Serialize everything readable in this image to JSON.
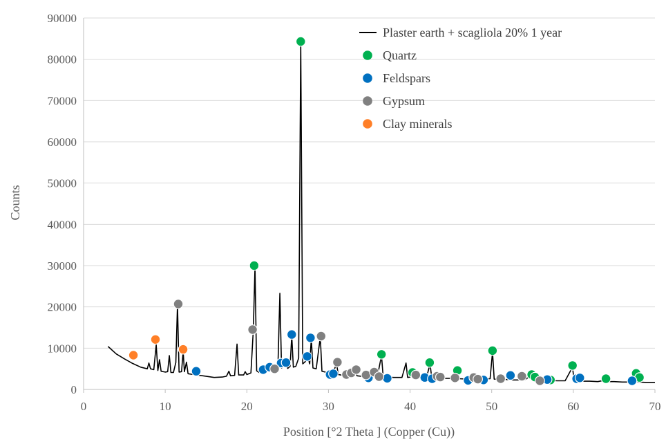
{
  "chart_data": {
    "type": "line",
    "title": "",
    "xlabel": "Position [°2 Theta ] (Copper (Cu))",
    "ylabel": "Counts",
    "xlim": [
      0,
      70
    ],
    "ylim": [
      0,
      90000
    ],
    "x_ticks": [
      0,
      10,
      20,
      30,
      40,
      50,
      60,
      70
    ],
    "y_ticks": [
      0,
      10000,
      20000,
      30000,
      40000,
      50000,
      60000,
      70000,
      80000,
      90000
    ],
    "grid": "horizontal",
    "legend_position": "top-right",
    "series": [
      {
        "name": "Plaster earth + scagliola 20% 1 year",
        "kind": "line",
        "color": "#000000",
        "points": [
          [
            3.0,
            10400
          ],
          [
            4.0,
            8600
          ],
          [
            5.0,
            7400
          ],
          [
            6.0,
            6300
          ],
          [
            7.0,
            5400
          ],
          [
            7.8,
            5000
          ],
          [
            8.0,
            6400
          ],
          [
            8.2,
            5000
          ],
          [
            8.6,
            4800
          ],
          [
            8.9,
            10800
          ],
          [
            9.1,
            4600
          ],
          [
            9.3,
            7200
          ],
          [
            9.5,
            4400
          ],
          [
            10.0,
            4200
          ],
          [
            10.3,
            4300
          ],
          [
            10.5,
            8200
          ],
          [
            10.7,
            4100
          ],
          [
            11.0,
            4100
          ],
          [
            11.3,
            6500
          ],
          [
            11.5,
            20500
          ],
          [
            11.7,
            4200
          ],
          [
            12.0,
            4300
          ],
          [
            12.2,
            9300
          ],
          [
            12.35,
            4300
          ],
          [
            12.6,
            6600
          ],
          [
            12.8,
            3800
          ],
          [
            13.5,
            3600
          ],
          [
            15.0,
            3200
          ],
          [
            16.0,
            2900
          ],
          [
            17.0,
            3000
          ],
          [
            17.5,
            3200
          ],
          [
            17.8,
            4400
          ],
          [
            18.0,
            3300
          ],
          [
            18.5,
            3400
          ],
          [
            18.8,
            11000
          ],
          [
            19.0,
            3500
          ],
          [
            19.6,
            3500
          ],
          [
            19.8,
            4300
          ],
          [
            20.0,
            3600
          ],
          [
            20.5,
            4000
          ],
          [
            20.8,
            14500
          ],
          [
            21.0,
            29800
          ],
          [
            21.2,
            4500
          ],
          [
            21.5,
            4100
          ],
          [
            22.0,
            4300
          ],
          [
            22.4,
            5200
          ],
          [
            22.6,
            4400
          ],
          [
            23.0,
            5000
          ],
          [
            23.3,
            4800
          ],
          [
            23.5,
            5600
          ],
          [
            23.8,
            4900
          ],
          [
            24.05,
            23300
          ],
          [
            24.25,
            5200
          ],
          [
            24.5,
            5600
          ],
          [
            24.8,
            6600
          ],
          [
            25.0,
            5100
          ],
          [
            25.3,
            5600
          ],
          [
            25.5,
            13000
          ],
          [
            25.7,
            5400
          ],
          [
            26.0,
            5600
          ],
          [
            26.35,
            7600
          ],
          [
            26.6,
            84000
          ],
          [
            26.85,
            6200
          ],
          [
            27.2,
            6800
          ],
          [
            27.5,
            7500
          ],
          [
            27.7,
            6200
          ],
          [
            27.9,
            12300
          ],
          [
            28.1,
            5200
          ],
          [
            28.5,
            5000
          ],
          [
            29.0,
            12700
          ],
          [
            29.2,
            4400
          ],
          [
            29.6,
            4200
          ],
          [
            30.0,
            4000
          ],
          [
            30.5,
            3800
          ],
          [
            31.0,
            6200
          ],
          [
            31.2,
            3600
          ],
          [
            31.5,
            3500
          ],
          [
            32.0,
            3400
          ],
          [
            32.5,
            3300
          ],
          [
            33.0,
            3500
          ],
          [
            33.3,
            4400
          ],
          [
            33.5,
            3300
          ],
          [
            34.0,
            3200
          ],
          [
            34.5,
            3100
          ],
          [
            35.0,
            3200
          ],
          [
            35.5,
            3300
          ],
          [
            36.0,
            3200
          ],
          [
            36.5,
            8200
          ],
          [
            36.7,
            3100
          ],
          [
            37.0,
            3000
          ],
          [
            38.0,
            2900
          ],
          [
            39.0,
            2900
          ],
          [
            39.5,
            6400
          ],
          [
            39.7,
            2900
          ],
          [
            40.0,
            3000
          ],
          [
            40.5,
            3700
          ],
          [
            40.8,
            2900
          ],
          [
            41.5,
            2800
          ],
          [
            42.0,
            2800
          ],
          [
            42.45,
            6200
          ],
          [
            42.65,
            2800
          ],
          [
            43.0,
            2700
          ],
          [
            44.0,
            2700
          ],
          [
            45.0,
            2700
          ],
          [
            45.8,
            4300
          ],
          [
            46.0,
            2600
          ],
          [
            47.0,
            2500
          ],
          [
            48.0,
            2500
          ],
          [
            49.0,
            2500
          ],
          [
            49.8,
            2600
          ],
          [
            50.1,
            9100
          ],
          [
            50.3,
            2500
          ],
          [
            51.0,
            2400
          ],
          [
            52.0,
            2400
          ],
          [
            52.3,
            3100
          ],
          [
            52.5,
            2300
          ],
          [
            53.0,
            2300
          ],
          [
            54.0,
            2300
          ],
          [
            54.9,
            3400
          ],
          [
            55.1,
            2300
          ],
          [
            56.0,
            2200
          ],
          [
            57.0,
            2200
          ],
          [
            58.0,
            2100
          ],
          [
            59.0,
            2100
          ],
          [
            59.9,
            5400
          ],
          [
            60.1,
            2100
          ],
          [
            61.0,
            2000
          ],
          [
            62.0,
            2000
          ],
          [
            63.0,
            1900
          ],
          [
            64.0,
            2300
          ],
          [
            64.2,
            1900
          ],
          [
            65.0,
            1900
          ],
          [
            66.0,
            1800
          ],
          [
            67.0,
            1800
          ],
          [
            67.7,
            3800
          ],
          [
            67.9,
            1800
          ],
          [
            69.0,
            1700
          ],
          [
            70.0,
            1700
          ]
        ]
      },
      {
        "name": "Quartz",
        "kind": "marker",
        "color": "#00b050",
        "points": [
          [
            20.9,
            30000
          ],
          [
            26.6,
            84300
          ],
          [
            36.5,
            8500
          ],
          [
            40.3,
            4100
          ],
          [
            42.4,
            6500
          ],
          [
            45.8,
            4600
          ],
          [
            50.1,
            9400
          ],
          [
            54.9,
            3600
          ],
          [
            55.3,
            3000
          ],
          [
            57.2,
            2300
          ],
          [
            59.9,
            5800
          ],
          [
            64.0,
            2600
          ],
          [
            67.7,
            3900
          ],
          [
            68.1,
            2900
          ]
        ]
      },
      {
        "name": "Feldspars",
        "kind": "marker",
        "color": "#0070c0",
        "points": [
          [
            13.8,
            4400
          ],
          [
            22.0,
            4800
          ],
          [
            22.8,
            5400
          ],
          [
            24.2,
            6400
          ],
          [
            24.8,
            6500
          ],
          [
            25.5,
            13300
          ],
          [
            27.4,
            8000
          ],
          [
            27.8,
            12500
          ],
          [
            30.2,
            3600
          ],
          [
            30.6,
            3800
          ],
          [
            34.9,
            2800
          ],
          [
            37.2,
            2700
          ],
          [
            41.8,
            2900
          ],
          [
            42.7,
            2600
          ],
          [
            47.1,
            2200
          ],
          [
            49.0,
            2300
          ],
          [
            52.3,
            3400
          ],
          [
            56.8,
            2400
          ],
          [
            60.4,
            2600
          ],
          [
            60.8,
            2800
          ],
          [
            67.2,
            2100
          ]
        ]
      },
      {
        "name": "Gypsum",
        "kind": "marker",
        "color": "#808080",
        "points": [
          [
            11.6,
            20700
          ],
          [
            20.7,
            14500
          ],
          [
            23.4,
            5000
          ],
          [
            29.1,
            12900
          ],
          [
            31.1,
            6600
          ],
          [
            32.2,
            3600
          ],
          [
            32.8,
            4000
          ],
          [
            33.4,
            4800
          ],
          [
            34.6,
            3500
          ],
          [
            35.6,
            4200
          ],
          [
            36.2,
            3100
          ],
          [
            40.7,
            3500
          ],
          [
            43.3,
            3200
          ],
          [
            43.7,
            3000
          ],
          [
            45.5,
            2800
          ],
          [
            47.8,
            2900
          ],
          [
            48.3,
            2500
          ],
          [
            51.1,
            2600
          ],
          [
            53.7,
            3200
          ],
          [
            55.9,
            2100
          ]
        ]
      },
      {
        "name": "Clay minerals",
        "kind": "marker",
        "color": "#ff7f27",
        "points": [
          [
            6.1,
            8300
          ],
          [
            8.8,
            12100
          ],
          [
            12.2,
            9700
          ]
        ]
      }
    ]
  }
}
